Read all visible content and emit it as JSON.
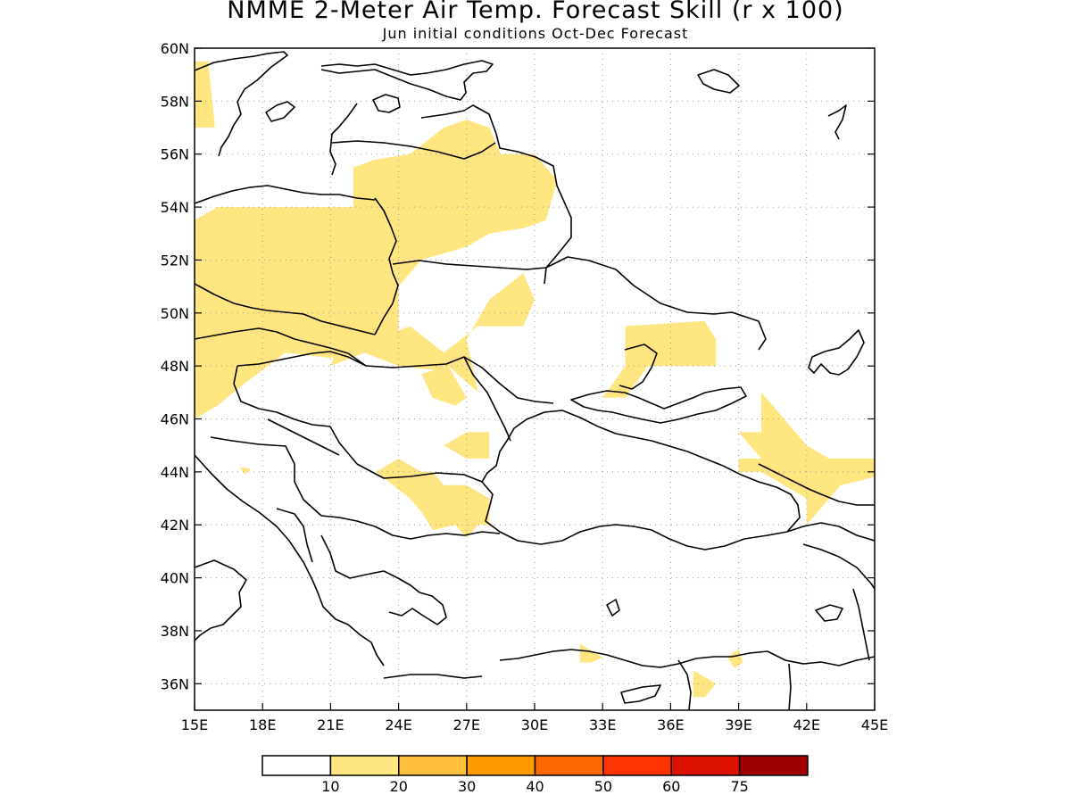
{
  "title": "NMME 2-Meter Air Temp. Forecast Skill (r x 100)",
  "subtitle": "Jun initial conditions  Oct-Dec Forecast",
  "map": {
    "lon_range": [
      15,
      45
    ],
    "lat_range": [
      35,
      60
    ],
    "lon_ticks": [
      {
        "value": 15,
        "label": "15E"
      },
      {
        "value": 18,
        "label": "18E"
      },
      {
        "value": 21,
        "label": "21E"
      },
      {
        "value": 24,
        "label": "24E"
      },
      {
        "value": 27,
        "label": "27E"
      },
      {
        "value": 30,
        "label": "30E"
      },
      {
        "value": 33,
        "label": "33E"
      },
      {
        "value": 36,
        "label": "36E"
      },
      {
        "value": 39,
        "label": "39E"
      },
      {
        "value": 42,
        "label": "42E"
      },
      {
        "value": 45,
        "label": "45E"
      }
    ],
    "lat_ticks": [
      {
        "value": 60,
        "label": "60N"
      },
      {
        "value": 58,
        "label": "58N"
      },
      {
        "value": 56,
        "label": "56N"
      },
      {
        "value": 54,
        "label": "54N"
      },
      {
        "value": 52,
        "label": "52N"
      },
      {
        "value": 50,
        "label": "50N"
      },
      {
        "value": 48,
        "label": "48N"
      },
      {
        "value": 46,
        "label": "46N"
      },
      {
        "value": 44,
        "label": "44N"
      },
      {
        "value": 42,
        "label": "42N"
      },
      {
        "value": 40,
        "label": "40N"
      },
      {
        "value": 38,
        "label": "38N"
      },
      {
        "value": 36,
        "label": "36N"
      }
    ],
    "grid": true,
    "skill_regions_10_20": [
      [
        [
          15.0,
          59.5
        ],
        [
          15.6,
          59.5
        ],
        [
          15.9,
          57.0
        ],
        [
          15.0,
          57.0
        ]
      ],
      [
        [
          15.0,
          53.5
        ],
        [
          16.0,
          54.0
        ],
        [
          19.0,
          54.0
        ],
        [
          22.0,
          54.0
        ],
        [
          22.0,
          55.5
        ],
        [
          23.0,
          55.8
        ],
        [
          24.5,
          56.0
        ],
        [
          26.0,
          57.0
        ],
        [
          27.0,
          57.3
        ],
        [
          28.0,
          57.0
        ],
        [
          28.5,
          56.0
        ],
        [
          30.0,
          56.0
        ],
        [
          31.0,
          55.0
        ],
        [
          30.5,
          53.5
        ],
        [
          29.5,
          53.2
        ],
        [
          28.0,
          53.0
        ],
        [
          27.0,
          52.5
        ],
        [
          25.0,
          52.0
        ],
        [
          24.0,
          51.0
        ],
        [
          24.0,
          49.0
        ],
        [
          22.0,
          48.5
        ],
        [
          21.0,
          48.3
        ],
        [
          19.0,
          48.5
        ],
        [
          17.0,
          47.2
        ],
        [
          16.0,
          46.5
        ],
        [
          15.0,
          46.0
        ]
      ],
      [
        [
          21.0,
          48.0
        ],
        [
          22.5,
          48.5
        ],
        [
          24.0,
          48.0
        ],
        [
          26.0,
          47.8
        ],
        [
          26.2,
          48.0
        ],
        [
          27.5,
          47.0
        ],
        [
          27.0,
          49.0
        ],
        [
          28.0,
          50.5
        ],
        [
          29.5,
          51.5
        ],
        [
          30.0,
          50.5
        ],
        [
          29.5,
          49.5
        ],
        [
          27.5,
          49.5
        ],
        [
          26.0,
          48.5
        ],
        [
          24.5,
          49.5
        ],
        [
          23.0,
          49.0
        ],
        [
          21.5,
          49.2
        ]
      ],
      [
        [
          25.0,
          47.7
        ],
        [
          26.2,
          48.0
        ],
        [
          27.0,
          46.8
        ],
        [
          26.5,
          46.5
        ],
        [
          25.5,
          46.8
        ]
      ],
      [
        [
          33.0,
          46.8
        ],
        [
          34.0,
          48.0
        ],
        [
          34.0,
          49.5
        ],
        [
          37.5,
          49.7
        ],
        [
          38.0,
          49.0
        ],
        [
          38.0,
          48.0
        ],
        [
          35.0,
          48.0
        ],
        [
          34.0,
          46.8
        ]
      ],
      [
        [
          39.0,
          45.5
        ],
        [
          40.0,
          45.5
        ],
        [
          40.0,
          47.0
        ],
        [
          41.0,
          46.0
        ],
        [
          42.0,
          45.0
        ],
        [
          43.0,
          44.5
        ],
        [
          45.0,
          44.5
        ],
        [
          45.0,
          43.8
        ],
        [
          43.5,
          43.5
        ],
        [
          42.5,
          42.5
        ],
        [
          42.0,
          42.0
        ],
        [
          42.0,
          43.0
        ],
        [
          41.0,
          43.5
        ],
        [
          40.0,
          44.0
        ],
        [
          39.0,
          44.0
        ],
        [
          39.0,
          44.5
        ],
        [
          40.0,
          44.5
        ]
      ],
      [
        [
          23.0,
          44.0
        ],
        [
          24.0,
          44.5
        ],
        [
          25.0,
          44.0
        ],
        [
          25.5,
          44.0
        ],
        [
          26.0,
          43.5
        ],
        [
          27.0,
          43.5
        ],
        [
          28.0,
          43.0
        ],
        [
          28.0,
          42.0
        ],
        [
          27.5,
          42.0
        ],
        [
          27.0,
          41.5
        ],
        [
          26.5,
          42.0
        ],
        [
          25.5,
          41.8
        ],
        [
          25.0,
          42.5
        ],
        [
          24.5,
          43.0
        ]
      ],
      [
        [
          26.0,
          45.0
        ],
        [
          27.0,
          45.5
        ],
        [
          28.0,
          45.5
        ],
        [
          28.0,
          44.5
        ],
        [
          27.0,
          44.5
        ]
      ],
      [
        [
          37.0,
          36.5
        ],
        [
          38.0,
          36.0
        ],
        [
          37.5,
          35.5
        ],
        [
          37.0,
          35.5
        ]
      ],
      [
        [
          32.0,
          37.5
        ],
        [
          33.0,
          37.0
        ],
        [
          32.5,
          36.8
        ],
        [
          32.0,
          36.8
        ]
      ],
      [
        [
          38.5,
          37.0
        ],
        [
          39.0,
          37.3
        ],
        [
          39.2,
          36.8
        ],
        [
          38.8,
          36.6
        ]
      ],
      [
        [
          17.0,
          44.2
        ],
        [
          17.5,
          44.1
        ],
        [
          17.2,
          43.9
        ]
      ]
    ]
  },
  "colorbar": {
    "boxes": [
      {
        "color": "#ffffff"
      },
      {
        "color": "#ffe680"
      },
      {
        "color": "#ffc03c"
      },
      {
        "color": "#ff9a00"
      },
      {
        "color": "#ff6a00"
      },
      {
        "color": "#ff3300"
      },
      {
        "color": "#dd1100"
      },
      {
        "color": "#a00000"
      }
    ],
    "labels": [
      "10",
      "20",
      "30",
      "40",
      "50",
      "60",
      "75"
    ]
  }
}
